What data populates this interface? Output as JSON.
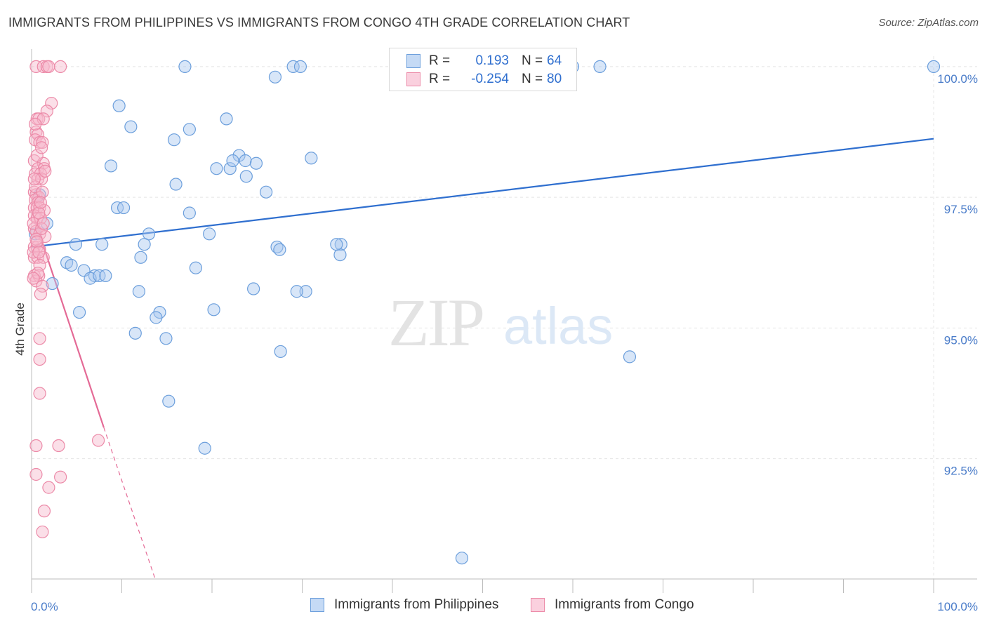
{
  "title": "IMMIGRANTS FROM PHILIPPINES VS IMMIGRANTS FROM CONGO 4TH GRADE CORRELATION CHART",
  "source": "Source: ZipAtlas.com",
  "watermark": {
    "zip": "ZIP",
    "atlas": "atlas"
  },
  "legend": {
    "rows": [
      {
        "r_label": "R =",
        "r_value": "0.193",
        "n_label": "N =",
        "n_value": "64"
      },
      {
        "r_label": "R =",
        "r_value": "-0.254",
        "n_label": "N =",
        "n_value": "80"
      }
    ]
  },
  "colors": {
    "blue_fill": "#a9c8ef",
    "blue_stroke": "#6c9fdc",
    "blue_line": "#2f6fcf",
    "pink_fill": "#f6b9cc",
    "pink_stroke": "#ec8aa8",
    "pink_line": "#e46a96",
    "grid": "#e4e4e4",
    "axis_text": "#4a7cc9"
  },
  "chart_data": {
    "type": "scatter",
    "title": "IMMIGRANTS FROM PHILIPPINES VS IMMIGRANTS FROM CONGO 4TH GRADE CORRELATION CHART",
    "xlabel": "",
    "ylabel": "4th Grade",
    "xlim": [
      0,
      100
    ],
    "ylim": [
      90.2,
      100.2
    ],
    "x_tick_labels": [
      "0.0%",
      "100.0%"
    ],
    "y_ticks": [
      {
        "value": 100.0,
        "label": "100.0%"
      },
      {
        "value": 97.5,
        "label": "97.5%"
      },
      {
        "value": 95.0,
        "label": "95.0%"
      },
      {
        "value": 92.5,
        "label": "92.5%"
      }
    ],
    "series": [
      {
        "name": "Immigrants from Philippines",
        "color": "blue",
        "r": 0.193,
        "n": 64,
        "trendline": {
          "x": [
            0,
            100
          ],
          "y": [
            96.55,
            98.62
          ]
        },
        "points": [
          [
            17.0,
            100.0
          ],
          [
            29.0,
            100.0
          ],
          [
            29.8,
            100.0
          ],
          [
            60.0,
            100.0
          ],
          [
            63.0,
            100.0
          ],
          [
            100.0,
            100.0
          ],
          [
            27.0,
            99.8
          ],
          [
            9.7,
            99.25
          ],
          [
            21.6,
            99.0
          ],
          [
            11.0,
            98.85
          ],
          [
            17.5,
            98.8
          ],
          [
            15.8,
            98.6
          ],
          [
            23.0,
            98.3
          ],
          [
            31.0,
            98.25
          ],
          [
            23.7,
            98.2
          ],
          [
            24.9,
            98.15
          ],
          [
            8.8,
            98.1
          ],
          [
            20.5,
            98.05
          ],
          [
            22.0,
            98.05
          ],
          [
            23.8,
            97.9
          ],
          [
            16.0,
            97.75
          ],
          [
            26.0,
            97.6
          ],
          [
            0.9,
            97.55
          ],
          [
            9.5,
            97.3
          ],
          [
            10.2,
            97.3
          ],
          [
            17.5,
            97.2
          ],
          [
            1.7,
            97.0
          ],
          [
            0.4,
            96.8
          ],
          [
            13.0,
            96.8
          ],
          [
            19.7,
            96.8
          ],
          [
            4.9,
            96.6
          ],
          [
            7.8,
            96.6
          ],
          [
            12.5,
            96.6
          ],
          [
            27.2,
            96.55
          ],
          [
            34.3,
            96.6
          ],
          [
            34.2,
            96.4
          ],
          [
            12.1,
            96.35
          ],
          [
            3.9,
            96.25
          ],
          [
            4.4,
            96.2
          ],
          [
            18.2,
            96.15
          ],
          [
            5.8,
            96.1
          ],
          [
            7.0,
            96.0
          ],
          [
            6.5,
            95.95
          ],
          [
            7.5,
            96.0
          ],
          [
            8.2,
            96.0
          ],
          [
            2.3,
            95.85
          ],
          [
            24.6,
            95.75
          ],
          [
            11.9,
            95.7
          ],
          [
            30.4,
            95.7
          ],
          [
            5.3,
            95.3
          ],
          [
            14.2,
            95.3
          ],
          [
            20.2,
            95.35
          ],
          [
            13.8,
            95.2
          ],
          [
            11.5,
            94.9
          ],
          [
            14.9,
            94.8
          ],
          [
            27.6,
            94.55
          ],
          [
            66.3,
            94.45
          ],
          [
            15.2,
            93.6
          ],
          [
            19.2,
            92.7
          ],
          [
            47.7,
            90.6
          ],
          [
            22.3,
            98.2
          ],
          [
            33.8,
            96.6
          ],
          [
            27.5,
            96.5
          ],
          [
            29.4,
            95.7
          ]
        ]
      },
      {
        "name": "Immigrants from Congo",
        "color": "pink",
        "r": -0.254,
        "n": 80,
        "trendline": {
          "x": [
            0,
            8.0
          ],
          "y": [
            97.25,
            93.1
          ],
          "dashed_to": [
            13.7,
            90.2
          ]
        },
        "points": [
          [
            0.5,
            100.0
          ],
          [
            1.3,
            100.0
          ],
          [
            1.7,
            100.0
          ],
          [
            1.9,
            100.0
          ],
          [
            3.2,
            100.0
          ],
          [
            2.2,
            99.3
          ],
          [
            1.7,
            99.15
          ],
          [
            0.6,
            99.0
          ],
          [
            0.8,
            99.0
          ],
          [
            1.3,
            99.0
          ],
          [
            0.5,
            98.75
          ],
          [
            0.7,
            98.7
          ],
          [
            0.4,
            98.6
          ],
          [
            0.9,
            98.55
          ],
          [
            1.2,
            98.55
          ],
          [
            0.3,
            98.2
          ],
          [
            1.3,
            98.15
          ],
          [
            0.7,
            98.05
          ],
          [
            1.4,
            98.05
          ],
          [
            0.4,
            97.95
          ],
          [
            1.0,
            97.95
          ],
          [
            0.7,
            97.85
          ],
          [
            1.1,
            97.85
          ],
          [
            0.3,
            97.6
          ],
          [
            0.5,
            97.55
          ],
          [
            0.8,
            97.5
          ],
          [
            0.4,
            97.45
          ],
          [
            0.7,
            97.4
          ],
          [
            0.3,
            97.3
          ],
          [
            0.6,
            97.3
          ],
          [
            0.9,
            97.3
          ],
          [
            1.4,
            97.25
          ],
          [
            0.3,
            97.15
          ],
          [
            0.6,
            97.1
          ],
          [
            1.0,
            97.1
          ],
          [
            0.3,
            96.9
          ],
          [
            0.5,
            96.85
          ],
          [
            0.9,
            96.8
          ],
          [
            1.5,
            96.75
          ],
          [
            0.3,
            96.55
          ],
          [
            0.6,
            96.55
          ],
          [
            0.9,
            96.5
          ],
          [
            0.3,
            96.35
          ],
          [
            0.7,
            96.35
          ],
          [
            1.3,
            96.35
          ],
          [
            0.9,
            96.2
          ],
          [
            0.3,
            96.0
          ],
          [
            0.8,
            96.0
          ],
          [
            0.5,
            95.9
          ],
          [
            1.2,
            95.8
          ],
          [
            1.0,
            95.65
          ],
          [
            0.9,
            94.8
          ],
          [
            0.9,
            94.4
          ],
          [
            0.9,
            93.75
          ],
          [
            0.5,
            92.75
          ],
          [
            3.0,
            92.75
          ],
          [
            7.4,
            92.85
          ],
          [
            0.5,
            92.2
          ],
          [
            3.2,
            92.15
          ],
          [
            1.9,
            91.95
          ],
          [
            1.4,
            91.5
          ],
          [
            1.2,
            91.1
          ],
          [
            0.2,
            97.0
          ],
          [
            0.6,
            98.3
          ],
          [
            1.1,
            98.45
          ],
          [
            0.4,
            97.7
          ],
          [
            0.8,
            97.2
          ],
          [
            1.2,
            97.6
          ],
          [
            0.5,
            96.7
          ],
          [
            0.2,
            96.45
          ],
          [
            1.1,
            96.9
          ],
          [
            0.7,
            96.05
          ],
          [
            0.4,
            98.9
          ],
          [
            1.5,
            98.0
          ],
          [
            0.3,
            97.85
          ],
          [
            1.0,
            97.4
          ],
          [
            0.6,
            96.65
          ],
          [
            0.2,
            95.95
          ],
          [
            0.8,
            96.45
          ],
          [
            1.3,
            97.0
          ]
        ]
      }
    ]
  },
  "bottom_legend": {
    "items": [
      {
        "label": "Immigrants from Philippines"
      },
      {
        "label": "Immigrants from Congo"
      }
    ]
  }
}
